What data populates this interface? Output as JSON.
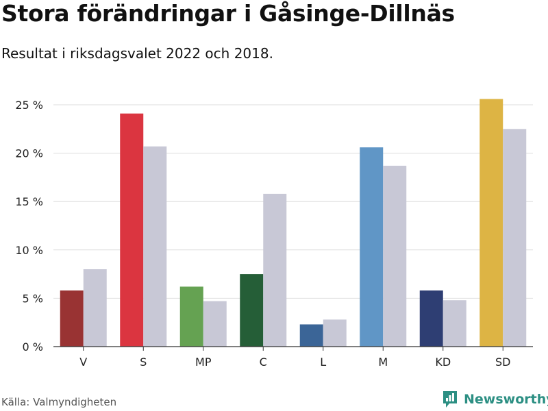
{
  "title": "Stora förändringar i Gåsinge-Dillnäs",
  "subtitle": "Resultat i riksdagsvalet 2022 och 2018.",
  "source": "Källa: Valmyndigheten",
  "brand": {
    "name": "Newsworthy",
    "color": "#2c8f83",
    "icon": "bar-chart-icon"
  },
  "chart_data": {
    "type": "bar",
    "categories": [
      "V",
      "S",
      "MP",
      "C",
      "L",
      "M",
      "KD",
      "SD"
    ],
    "series": [
      {
        "values": [
          5.8,
          24.1,
          6.2,
          7.5,
          2.3,
          20.6,
          5.8,
          25.6
        ],
        "colors": [
          "#993333",
          "#db3540",
          "#65a252",
          "#255e37",
          "#3b6597",
          "#6096c6",
          "#2e3e73",
          "#ddb444"
        ]
      },
      {
        "values": [
          8.0,
          20.7,
          4.7,
          15.8,
          2.8,
          18.7,
          4.8,
          22.5
        ],
        "color": "#c8c8d6"
      }
    ],
    "yticks": [
      0,
      5,
      10,
      15,
      20,
      25
    ],
    "ytick_labels": [
      "0 %",
      "5 %",
      "10 %",
      "15 %",
      "20 %",
      "25 %"
    ],
    "ylim": [
      0,
      25
    ],
    "grid": true,
    "legend": "none"
  }
}
